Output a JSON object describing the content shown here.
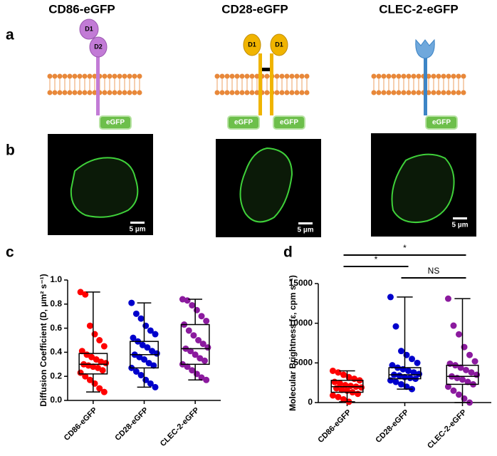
{
  "panel_labels": [
    "a",
    "b",
    "c",
    "d"
  ],
  "constructs": [
    {
      "title": "CD86-eGFP",
      "domains": [
        "D1",
        "D2"
      ],
      "tags": [
        "eGFP"
      ]
    },
    {
      "title": "CD28-eGFP",
      "domains": [
        "D1",
        "D1"
      ],
      "tags": [
        "eGFP",
        "eGFP"
      ]
    },
    {
      "title": "CLEC-2-eGFP",
      "tags": [
        "eGFP"
      ]
    }
  ],
  "images": [
    {
      "scale_bar": "5 µm"
    },
    {
      "scale_bar": "5 µm"
    },
    {
      "scale_bar": "5 µm"
    }
  ],
  "chart_data": [
    {
      "type": "box",
      "ylabel": "Diffusion Coefficient (D, μm² s⁻¹)",
      "categories": [
        "CD86-eGFP",
        "CD28-eGFP",
        "CLEC-2-eGFP"
      ],
      "ylim": [
        0,
        1
      ],
      "yticks": [
        {
          "value": 0,
          "label": "0.0"
        },
        0.2,
        0.4,
        0.6,
        0.8,
        {
          "value": 1,
          "label": "1.0"
        }
      ],
      "boxes": [
        {
          "color": "#ff0000",
          "min": 0.07,
          "q1": 0.22,
          "median": 0.3,
          "q3": 0.39,
          "max": 0.9,
          "points": [
            0.9,
            0.88,
            0.62,
            0.55,
            0.5,
            0.45,
            0.41,
            0.38,
            0.36,
            0.34,
            0.32,
            0.31,
            0.3,
            0.29,
            0.28,
            0.27,
            0.25,
            0.23,
            0.2,
            0.17,
            0.14,
            0.1,
            0.07
          ]
        },
        {
          "color": "#0000cc",
          "min": 0.11,
          "q1": 0.27,
          "median": 0.38,
          "q3": 0.49,
          "max": 0.81,
          "points": [
            0.81,
            0.72,
            0.68,
            0.62,
            0.58,
            0.55,
            0.52,
            0.49,
            0.46,
            0.44,
            0.41,
            0.39,
            0.38,
            0.36,
            0.34,
            0.31,
            0.29,
            0.27,
            0.24,
            0.21,
            0.17,
            0.14,
            0.11
          ]
        },
        {
          "color": "#8b1a9e",
          "min": 0.17,
          "q1": 0.3,
          "median": 0.43,
          "q3": 0.63,
          "max": 0.84,
          "points": [
            0.84,
            0.83,
            0.79,
            0.75,
            0.7,
            0.66,
            0.63,
            0.58,
            0.54,
            0.5,
            0.47,
            0.44,
            0.43,
            0.41,
            0.38,
            0.35,
            0.33,
            0.3,
            0.28,
            0.25,
            0.22,
            0.19,
            0.17
          ]
        }
      ]
    },
    {
      "type": "box",
      "ylabel": "Molecular Brightness (ε, cpm s⁻¹)",
      "categories": [
        "CD86-eGFP",
        "CD28-eGFP",
        "CLEC-2-eGFP"
      ],
      "ylim": [
        0,
        15000
      ],
      "yticks": [
        0,
        5000,
        10000,
        15000
      ],
      "boxes": [
        {
          "color": "#ff0000",
          "min": 100,
          "q1": 1300,
          "median": 2000,
          "q3": 2800,
          "max": 4000,
          "points": [
            4000,
            3800,
            3500,
            3200,
            3000,
            2800,
            2600,
            2400,
            2200,
            2100,
            2000,
            1900,
            1800,
            1600,
            1500,
            1300,
            1100,
            900,
            700,
            400,
            100
          ]
        },
        {
          "color": "#0000cc",
          "min": 1700,
          "q1": 3000,
          "median": 3500,
          "q3": 4400,
          "max": 13300,
          "points": [
            13300,
            9600,
            6500,
            6000,
            5500,
            5000,
            4700,
            4400,
            4200,
            4000,
            3800,
            3600,
            3500,
            3400,
            3200,
            3100,
            3000,
            2800,
            2600,
            2300,
            2000,
            1700
          ]
        },
        {
          "color": "#8b1a9e",
          "min": 0,
          "q1": 2300,
          "median": 3300,
          "q3": 4700,
          "max": 13100,
          "points": [
            13100,
            9700,
            8600,
            7000,
            6000,
            5200,
            4900,
            4700,
            4400,
            4100,
            3800,
            3500,
            3300,
            3100,
            2900,
            2600,
            2300,
            2000,
            1500,
            1000,
            500,
            0
          ]
        }
      ],
      "annotations": [
        "*",
        "*",
        "NS"
      ]
    }
  ]
}
